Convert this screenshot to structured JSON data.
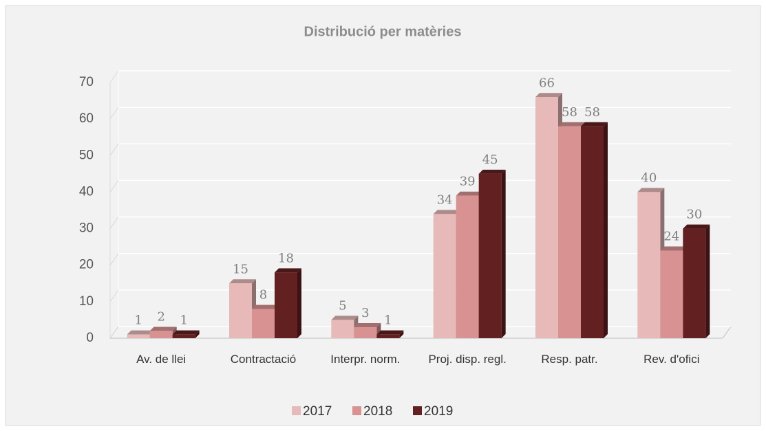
{
  "chart_data": {
    "type": "bar3d",
    "title": "Distribució per matèries",
    "categories": [
      "Av. de llei",
      "Contractació",
      "Interpr. norm.",
      "Proj. disp. regl.",
      "Resp. patr.",
      "Rev. d'ofici"
    ],
    "series": [
      {
        "name": "2017",
        "color": "#e8b9b9",
        "values": [
          1,
          15,
          5,
          34,
          66,
          40
        ]
      },
      {
        "name": "2018",
        "color": "#d99292",
        "values": [
          2,
          8,
          3,
          39,
          58,
          24
        ]
      },
      {
        "name": "2019",
        "color": "#632021",
        "values": [
          1,
          18,
          1,
          45,
          58,
          30
        ]
      }
    ],
    "ylim": [
      0,
      70
    ],
    "yticks": [
      0,
      10,
      20,
      30,
      40,
      50,
      60,
      70
    ],
    "grid": true,
    "legend": "bottom"
  }
}
